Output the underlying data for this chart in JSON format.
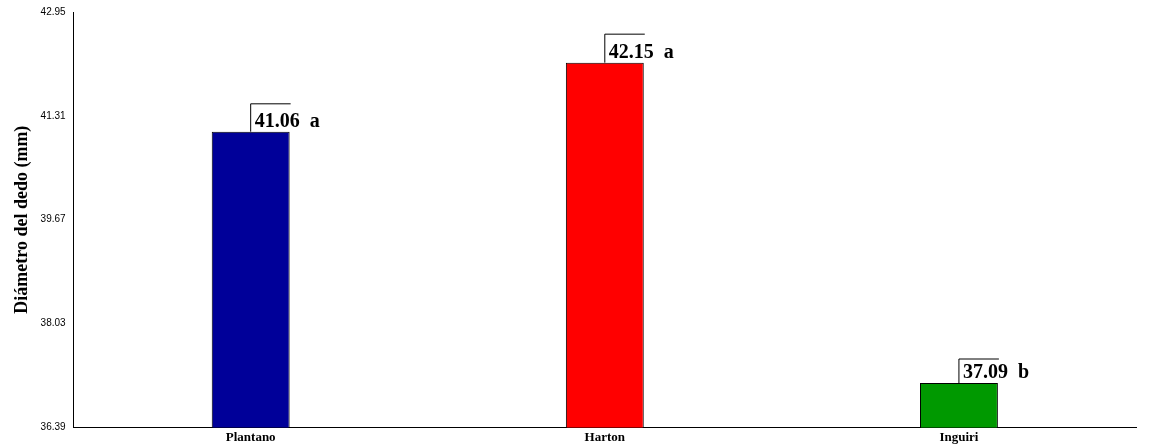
{
  "chart_data": {
    "type": "bar",
    "ylabel": "Diámetro del dedo (mm)",
    "categories": [
      "Plantano",
      "Harton",
      "Inguiri"
    ],
    "values": [
      41.06,
      42.15,
      37.09
    ],
    "colors": [
      "#000099",
      "#ff0000",
      "#009900"
    ],
    "errors": [
      [
        41.06,
        41.5
      ],
      [
        42.15,
        42.6
      ],
      [
        37.09,
        37.47
      ]
    ],
    "value_labels": [
      "41.06  a",
      "42.15  a",
      "37.09  b"
    ],
    "ylim": [
      36.39,
      42.95
    ],
    "yticks": [
      36.39,
      38.03,
      39.67,
      41.31,
      42.95
    ],
    "grid": false,
    "legend": false
  }
}
